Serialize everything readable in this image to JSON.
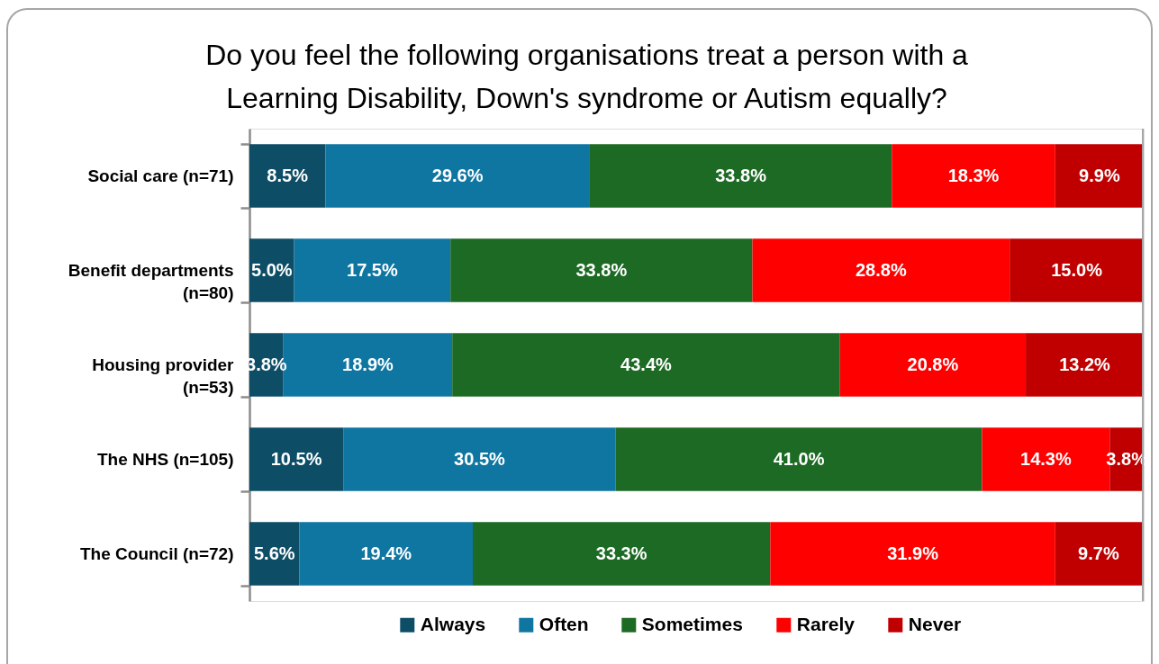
{
  "chart_data": {
    "type": "bar",
    "orientation": "horizontal",
    "stacked": true,
    "title": "Do you feel the following organisations treat a person with a Learning Disability, Down's syndrome or Autism equally?",
    "categories": [
      "Social care (n=71)",
      "Benefit departments (n=80)",
      "Housing provider (n=53)",
      "The NHS (n=105)",
      "The Council (n=72)"
    ],
    "series": [
      {
        "name": "Always",
        "color": "#0d4d66",
        "values": [
          8.5,
          5.0,
          3.8,
          10.5,
          5.6
        ],
        "value_labels": [
          "8.5%",
          "5.0%",
          "3.8%",
          "10.5%",
          "5.6%"
        ]
      },
      {
        "name": "Often",
        "color": "#0f76a2",
        "values": [
          29.6,
          17.5,
          18.9,
          30.5,
          19.4
        ],
        "value_labels": [
          "29.6%",
          "17.5%",
          "18.9%",
          "30.5%",
          "19.4%"
        ]
      },
      {
        "name": "Sometimes",
        "color": "#1d6a24",
        "values": [
          33.8,
          33.8,
          43.4,
          41.0,
          33.3
        ],
        "value_labels": [
          "33.8%",
          "33.8%",
          "43.4%",
          "41.0%",
          "33.3%"
        ]
      },
      {
        "name": "Rarely",
        "color": "#ff0000",
        "values": [
          18.3,
          28.8,
          20.8,
          14.3,
          31.9
        ],
        "value_labels": [
          "18.3%",
          "28.8%",
          "20.8%",
          "14.3%",
          "31.9%"
        ]
      },
      {
        "name": "Never",
        "color": "#c00000",
        "values": [
          9.9,
          15.0,
          13.2,
          3.8,
          9.7
        ],
        "value_labels": [
          "9.9%",
          "15.0%",
          "13.2%",
          "3.8%",
          "9.7%"
        ]
      }
    ],
    "legend": "bottom",
    "tick_labels": "y",
    "ref_lines": [
      {
        "axis": "x",
        "value": 100,
        "color": "#a6a6a6"
      }
    ]
  }
}
